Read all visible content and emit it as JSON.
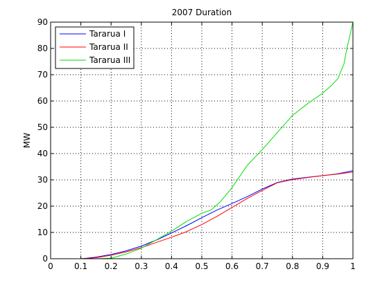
{
  "chart_data": {
    "type": "line",
    "title": "2007 Duration",
    "xlabel": "",
    "ylabel": "MW",
    "xlim": [
      0,
      1
    ],
    "ylim": [
      0,
      90
    ],
    "xticks": [
      "0",
      "0.1",
      "0.2",
      "0.3",
      "0.4",
      "0.5",
      "0.6",
      "0.7",
      "0.8",
      "0.9",
      "1"
    ],
    "yticks": [
      "0",
      "10",
      "20",
      "30",
      "40",
      "50",
      "60",
      "70",
      "80",
      "90"
    ],
    "grid": true,
    "legend_position": "top-left",
    "series": [
      {
        "name": "Tararua I",
        "color": "#0000ff",
        "x": [
          0.1,
          0.12,
          0.15,
          0.2,
          0.25,
          0.3,
          0.35,
          0.4,
          0.45,
          0.5,
          0.55,
          0.6,
          0.65,
          0.7,
          0.75,
          0.8,
          0.85,
          0.9,
          0.95,
          1.0
        ],
        "y": [
          0,
          0.2,
          0.6,
          1.6,
          3.0,
          4.8,
          7.1,
          9.8,
          12.6,
          15.6,
          18.5,
          21.0,
          23.6,
          26.5,
          29.0,
          30.3,
          31.0,
          31.6,
          32.3,
          33.5
        ]
      },
      {
        "name": "Tararua II",
        "color": "#ff0000",
        "x": [
          0.1,
          0.12,
          0.15,
          0.2,
          0.25,
          0.3,
          0.35,
          0.4,
          0.45,
          0.5,
          0.55,
          0.6,
          0.65,
          0.7,
          0.75,
          0.8,
          0.85,
          0.9,
          0.95,
          1.0
        ],
        "y": [
          0,
          0.1,
          0.4,
          1.3,
          2.6,
          4.2,
          6.2,
          8.2,
          10.3,
          13.0,
          16.1,
          19.5,
          22.9,
          26.0,
          28.9,
          30.1,
          30.9,
          31.6,
          32.2,
          33.0
        ]
      },
      {
        "name": "Tararua III",
        "color": "#00dd00",
        "x": [
          0.15,
          0.2,
          0.25,
          0.3,
          0.35,
          0.4,
          0.45,
          0.5,
          0.53,
          0.56,
          0.6,
          0.65,
          0.7,
          0.75,
          0.8,
          0.85,
          0.9,
          0.93,
          0.95,
          0.97,
          0.98,
          0.99,
          1.0
        ],
        "y": [
          0,
          0.2,
          1.8,
          4.0,
          7.2,
          10.5,
          14.2,
          17.3,
          18.5,
          21.5,
          27.0,
          35.5,
          41.5,
          48.0,
          54.5,
          59.0,
          63.0,
          66.0,
          68.5,
          74.0,
          80.0,
          85.0,
          90.0
        ]
      }
    ]
  }
}
